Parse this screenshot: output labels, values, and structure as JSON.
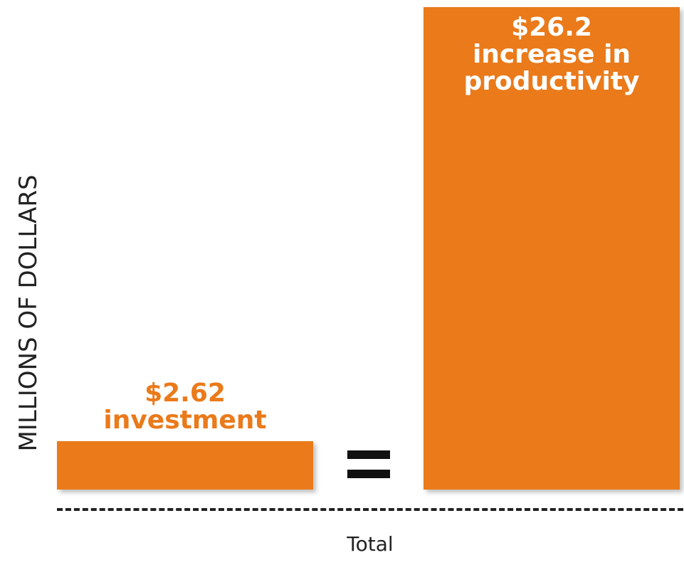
{
  "chart_data": {
    "type": "bar",
    "y_label": "MILLIONS OF DOLLARS",
    "x_label": "Total",
    "categories": [
      null,
      null
    ],
    "values": [
      2.62,
      26.2
    ],
    "value_labels": [
      "$2.62",
      "$26.2"
    ],
    "annotations": [
      "investment",
      "increase in productivity"
    ],
    "color": "#ea7a1a"
  }
}
